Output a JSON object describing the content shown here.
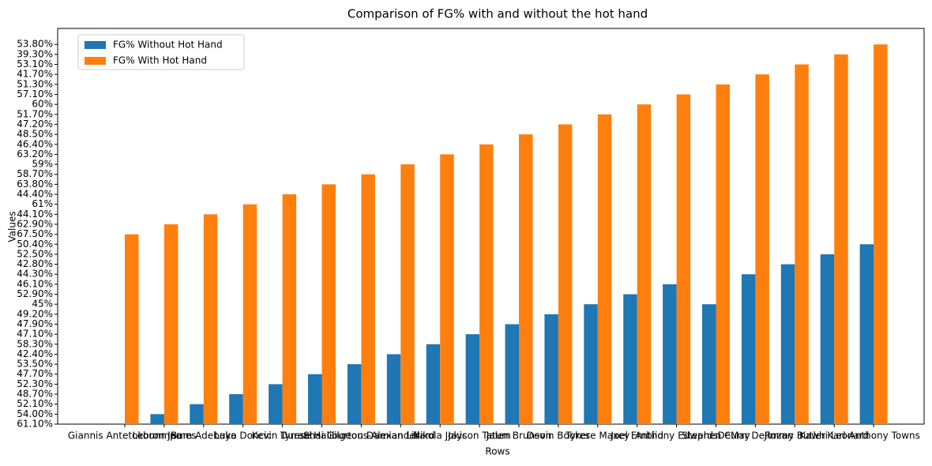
{
  "chart_data": {
    "type": "bar",
    "title": "Comparison of FG% with and without the hot hand",
    "x_label": "Rows",
    "y_label": "Values",
    "categories": [
      "Giannis Antetokounmpo",
      "Lebron James",
      "Bam Adebayo",
      "Luka Doncic",
      "Kevin Durant",
      "Tyrese Haliburton",
      "Shai Gilgeous-Alexander",
      "Damian Lillard",
      "Nikola Jokic",
      "Jayson Tatum",
      "Jalen Brunson",
      "Devin Booker",
      "Tyrese Maxey",
      "Joel Embiid",
      "Anthony Edwards",
      "Stephen Curry",
      "DeMar DeRozan",
      "Jimmy Butler",
      "Kawhi Leonard",
      "Karl-Anthony Towns"
    ],
    "series": [
      {
        "name": "FG% Without Hot Hand",
        "color": "#1f77b4",
        "values": [
          0,
          1,
          2,
          3,
          4,
          5,
          6,
          7,
          8,
          9,
          10,
          11,
          12,
          13,
          14,
          12,
          15,
          16,
          17,
          18
        ]
      },
      {
        "name": "FG% With Hot Hand",
        "color": "#ff7f0e",
        "values": [
          19,
          20,
          21,
          22,
          23,
          24,
          25,
          26,
          27,
          28,
          29,
          30,
          31,
          32,
          33,
          34,
          35,
          36,
          37,
          38
        ]
      }
    ],
    "ylim": [
      0,
      39.6
    ],
    "yticks": [
      {
        "value": 0,
        "label": "61.10%"
      },
      {
        "value": 1,
        "label": "54.00%"
      },
      {
        "value": 2,
        "label": "52.10%"
      },
      {
        "value": 3,
        "label": "48.70%"
      },
      {
        "value": 4,
        "label": "52.30%"
      },
      {
        "value": 5,
        "label": "47.70%"
      },
      {
        "value": 6,
        "label": "53.50%"
      },
      {
        "value": 7,
        "label": "42.40%"
      },
      {
        "value": 8,
        "label": "58.30%"
      },
      {
        "value": 9,
        "label": "47.10%"
      },
      {
        "value": 10,
        "label": "47.90%"
      },
      {
        "value": 11,
        "label": "49.20%"
      },
      {
        "value": 12,
        "label": "45%"
      },
      {
        "value": 13,
        "label": "52.90%"
      },
      {
        "value": 14,
        "label": "46.10%"
      },
      {
        "value": 15,
        "label": "44.30%"
      },
      {
        "value": 16,
        "label": "42.80%"
      },
      {
        "value": 17,
        "label": "52.50%"
      },
      {
        "value": 18,
        "label": "50.40%"
      },
      {
        "value": 19,
        "label": "67.50%"
      },
      {
        "value": 20,
        "label": "62.90%"
      },
      {
        "value": 21,
        "label": "44.10%"
      },
      {
        "value": 22,
        "label": "61%"
      },
      {
        "value": 23,
        "label": "44.40%"
      },
      {
        "value": 24,
        "label": "63.80%"
      },
      {
        "value": 25,
        "label": "58.70%"
      },
      {
        "value": 26,
        "label": "59%"
      },
      {
        "value": 27,
        "label": "63.20%"
      },
      {
        "value": 28,
        "label": "46.40%"
      },
      {
        "value": 29,
        "label": "48.50%"
      },
      {
        "value": 30,
        "label": "47.20%"
      },
      {
        "value": 31,
        "label": "51.70%"
      },
      {
        "value": 32,
        "label": "60%"
      },
      {
        "value": 33,
        "label": "57.10%"
      },
      {
        "value": 34,
        "label": "51.30%"
      },
      {
        "value": 35,
        "label": "41.70%"
      },
      {
        "value": 36,
        "label": "53.10%"
      },
      {
        "value": 37,
        "label": "39.30%"
      },
      {
        "value": 38,
        "label": "53.80%"
      }
    ],
    "legend": "upper left",
    "grid": false
  }
}
